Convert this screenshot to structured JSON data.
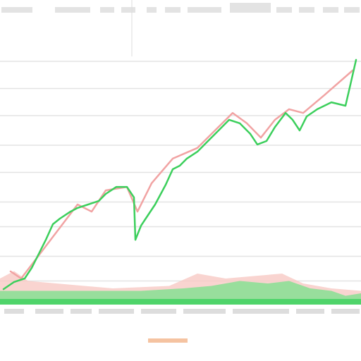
{
  "chart_data": {
    "type": "line",
    "xlim": [
      0,
      512
    ],
    "ylim": [
      0,
      100
    ],
    "yticks": [
      9,
      19,
      31,
      41,
      53,
      64,
      76,
      87,
      98
    ],
    "grid": true,
    "series": [
      {
        "color": "#f7c9c4",
        "fill": true,
        "x": [
          0,
          20,
          40,
          80,
          160,
          240,
          280,
          320,
          360,
          400,
          430,
          470,
          512
        ],
        "values": [
          10,
          13,
          9,
          8,
          6,
          7,
          12,
          10,
          11,
          12,
          8,
          6,
          5
        ]
      },
      {
        "color": "#7fe08f",
        "fill": true,
        "x": [
          0,
          60,
          120,
          200,
          260,
          300,
          340,
          380,
          410,
          440,
          470,
          490,
          512
        ],
        "values": [
          5,
          5,
          5,
          5,
          6,
          7,
          9,
          8,
          9,
          6,
          5,
          3,
          4
        ]
      },
      {
        "color": "#f1a3a3",
        "fill": false,
        "x": [
          15,
          30,
          110,
          130,
          150,
          180,
          195,
          215,
          245,
          280,
          300,
          330,
          350,
          370,
          390,
          410,
          430,
          460,
          500
        ],
        "values": [
          12.9,
          10,
          40,
          37.1,
          45.7,
          47.1,
          37.1,
          48.6,
          58.6,
          62.9,
          68.6,
          77.1,
          72.9,
          67.1,
          74.3,
          78.6,
          77.1,
          84.3,
          94.3
        ]
      },
      {
        "color": "#3ccf5c",
        "fill": false,
        "x": [
          5,
          20,
          35,
          45,
          55,
          65,
          75,
          85,
          100,
          110,
          125,
          140,
          150,
          165,
          180,
          190,
          192,
          200,
          210,
          220,
          235,
          245,
          255,
          265,
          280,
          295,
          310,
          325,
          340,
          355,
          365,
          378,
          390,
          405,
          415,
          425,
          435,
          450,
          470,
          490,
          497,
          505
        ],
        "values": [
          5.7,
          8.6,
          10,
          14.3,
          20,
          25.7,
          32,
          34.3,
          37.1,
          38.6,
          40,
          41.4,
          44.3,
          47.1,
          47.1,
          42.9,
          25.7,
          31.4,
          35.7,
          40,
          48,
          54.3,
          55.7,
          58.6,
          61.4,
          65.7,
          70,
          74.3,
          72.9,
          68.6,
          64.3,
          65.7,
          71.4,
          77.1,
          74.3,
          70,
          75.7,
          78.6,
          81.4,
          80,
          88.6,
          98.6
        ]
      }
    ]
  }
}
